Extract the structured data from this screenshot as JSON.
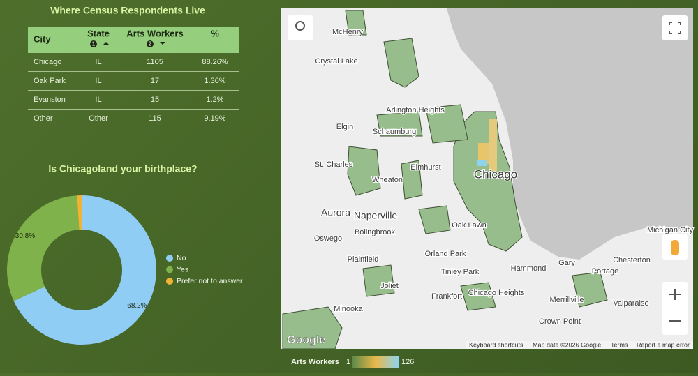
{
  "table": {
    "title": "Where Census Respondents Live",
    "columns": [
      "City",
      "State",
      "Arts Workers",
      "%"
    ],
    "sort_badges": [
      "1",
      "2"
    ],
    "rows": [
      [
        "Chicago",
        "IL",
        1105,
        "88.26%"
      ],
      [
        "Oak Park",
        "IL",
        17,
        "1.36%"
      ],
      [
        "Evanston",
        "IL",
        15,
        "1.2%"
      ],
      [
        "Other",
        "Other",
        115,
        "9.19%"
      ]
    ]
  },
  "chart_data": {
    "type": "pie",
    "title": "Is Chicagoland your birthplace?",
    "categories": [
      "No",
      "Yes",
      "Prefer not to answer"
    ],
    "values": [
      68.2,
      30.8,
      1.0
    ],
    "value_labels": [
      "68.2%",
      "30.8%",
      null
    ],
    "colors": [
      "#90cdf4",
      "#7fb24a",
      "#f2b233"
    ],
    "donut": true,
    "legend": "right"
  },
  "map": {
    "labels": [
      "McHenry",
      "Crystal Lake",
      "Arlington Heights",
      "Elgin",
      "Schaumburg",
      "St. Charles",
      "Elmhurst",
      "Wheaton",
      "Chicago",
      "Aurora",
      "Naperville",
      "Bolingbrook",
      "Oswego",
      "Oak Lawn",
      "Orland Park",
      "Plainfield",
      "Joliet",
      "Tinley Park",
      "Hammond",
      "Gary",
      "Portage",
      "Chesterton",
      "Michigan City",
      "Frankfort",
      "Chicago Heights",
      "Merrillville",
      "Valparaiso",
      "Crown Point",
      "Minooka"
    ],
    "logo": "Google",
    "footer": [
      "Keyboard shortcuts",
      "Map data ©2026 Google",
      "Terms",
      "Report a map error"
    ],
    "legend": {
      "title": "Arts Workers",
      "min": 1,
      "max": 126
    }
  }
}
